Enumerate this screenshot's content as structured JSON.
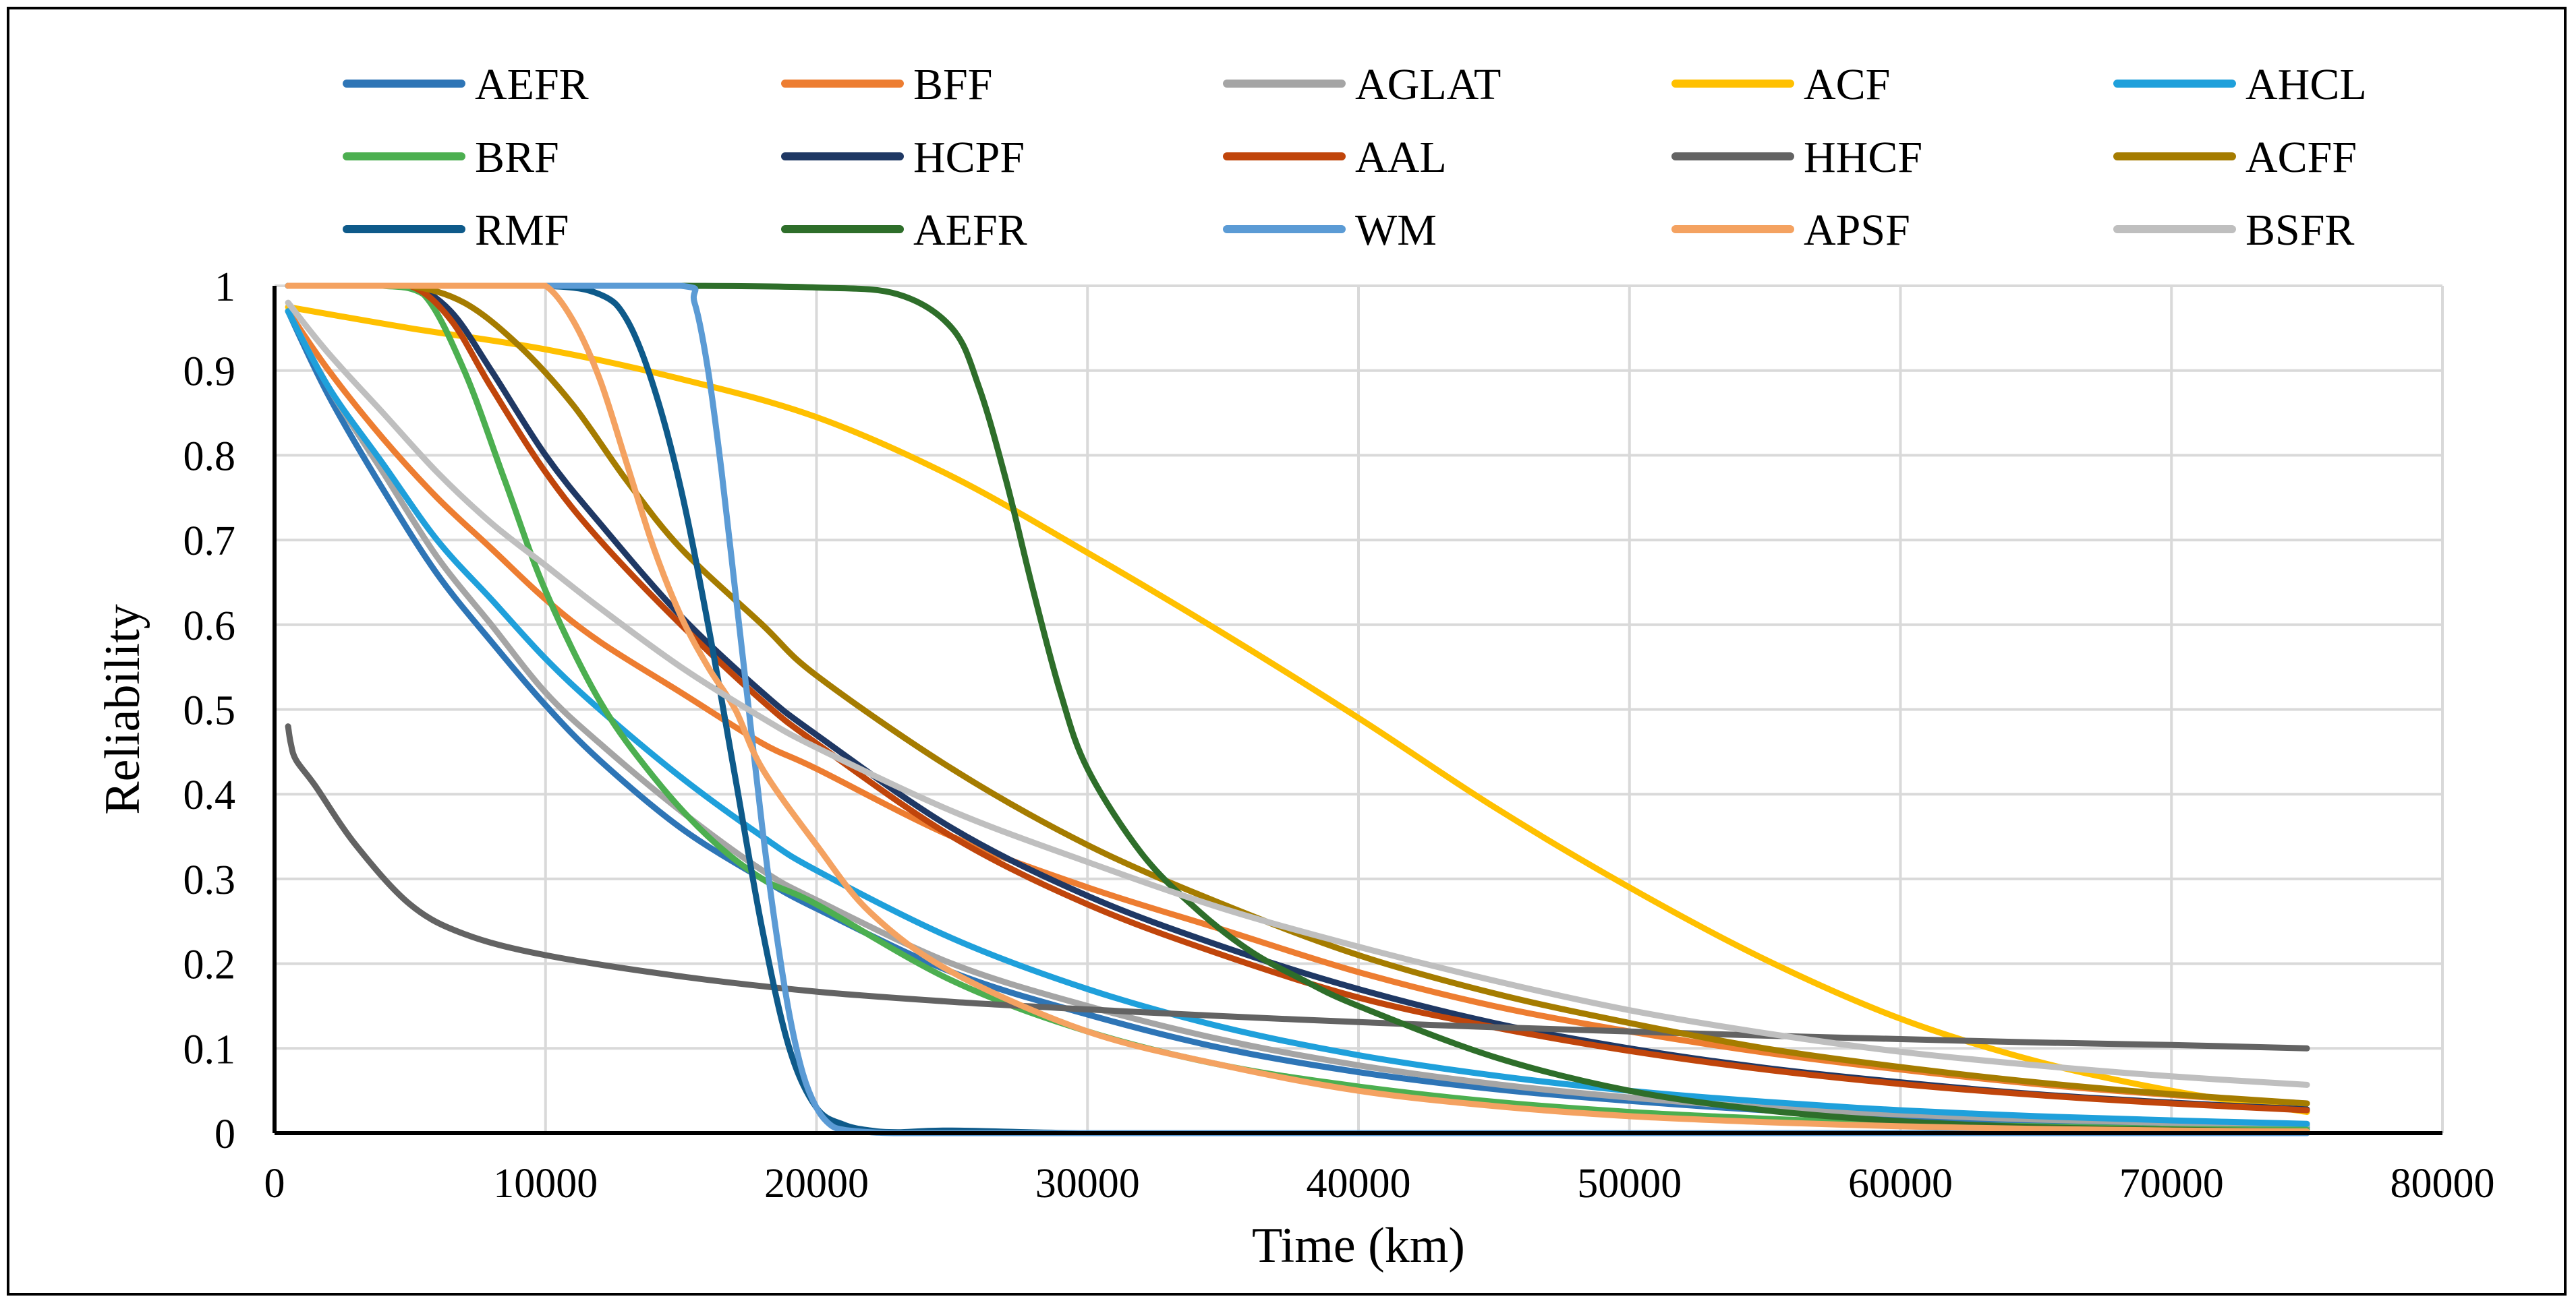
{
  "chart_data": {
    "type": "line",
    "title": "",
    "xlabel": "Time (km)",
    "ylabel": "Reliability",
    "xlim": [
      0,
      80000
    ],
    "ylim": [
      0,
      1
    ],
    "grid": true,
    "legend_position": "top",
    "x_ticks": [
      "0",
      "10000",
      "20000",
      "30000",
      "40000",
      "50000",
      "60000",
      "70000",
      "80000"
    ],
    "y_ticks": [
      "0",
      "0.1",
      "0.2",
      "0.3",
      "0.4",
      "0.5",
      "0.6",
      "0.7",
      "0.8",
      "0.9",
      "1"
    ],
    "series": [
      {
        "name": "AEFR",
        "color": "#2E75B6",
        "x": [
          500,
          2000,
          4000,
          6000,
          8000,
          10000,
          12000,
          15000,
          18000,
          20000,
          25000,
          30000,
          35000,
          40000,
          45000,
          50000,
          55000,
          60000,
          65000,
          70000,
          75000
        ],
        "values": [
          0.97,
          0.87,
          0.76,
          0.66,
          0.58,
          0.505,
          0.44,
          0.36,
          0.3,
          0.265,
          0.19,
          0.14,
          0.1,
          0.072,
          0.052,
          0.038,
          0.027,
          0.019,
          0.014,
          0.01,
          0.007
        ]
      },
      {
        "name": "BFF",
        "color": "#ED7D31",
        "x": [
          500,
          2000,
          4000,
          6000,
          8000,
          10000,
          12000,
          15000,
          18000,
          20000,
          25000,
          30000,
          35000,
          40000,
          45000,
          50000,
          55000,
          60000,
          65000,
          70000,
          75000
        ],
        "values": [
          0.97,
          0.9,
          0.82,
          0.75,
          0.69,
          0.63,
          0.58,
          0.52,
          0.46,
          0.43,
          0.35,
          0.29,
          0.24,
          0.19,
          0.15,
          0.12,
          0.095,
          0.075,
          0.058,
          0.045,
          0.035
        ]
      },
      {
        "name": "AGLAT",
        "color": "#A5A5A5",
        "x": [
          500,
          2000,
          4000,
          6000,
          8000,
          10000,
          12000,
          15000,
          18000,
          20000,
          25000,
          30000,
          35000,
          40000,
          45000,
          50000,
          55000,
          60000,
          65000,
          70000,
          75000
        ],
        "values": [
          0.97,
          0.88,
          0.78,
          0.68,
          0.6,
          0.52,
          0.46,
          0.38,
          0.31,
          0.275,
          0.2,
          0.15,
          0.11,
          0.08,
          0.058,
          0.042,
          0.03,
          0.022,
          0.016,
          0.012,
          0.009
        ]
      },
      {
        "name": "ACF",
        "color": "#FFC000",
        "x": [
          500,
          5000,
          10000,
          15000,
          20000,
          25000,
          30000,
          35000,
          40000,
          45000,
          50000,
          55000,
          60000,
          65000,
          70000,
          75000
        ],
        "values": [
          0.975,
          0.95,
          0.925,
          0.89,
          0.845,
          0.775,
          0.685,
          0.59,
          0.49,
          0.385,
          0.29,
          0.205,
          0.135,
          0.085,
          0.05,
          0.025
        ]
      },
      {
        "name": "AHCL",
        "color": "#1FA0DB",
        "x": [
          500,
          2000,
          4000,
          6000,
          8000,
          10000,
          12000,
          15000,
          18000,
          20000,
          25000,
          30000,
          35000,
          40000,
          45000,
          50000,
          55000,
          60000,
          65000,
          70000,
          75000
        ],
        "values": [
          0.97,
          0.88,
          0.79,
          0.7,
          0.63,
          0.56,
          0.5,
          0.42,
          0.35,
          0.31,
          0.23,
          0.17,
          0.125,
          0.092,
          0.068,
          0.05,
          0.037,
          0.027,
          0.02,
          0.015,
          0.011
        ]
      },
      {
        "name": "BRF",
        "color": "#4CAF50",
        "x": [
          500,
          2000,
          4000,
          5500,
          7000,
          8500,
          10000,
          12000,
          14000,
          16000,
          18000,
          20000,
          25000,
          30000,
          35000,
          40000,
          45000,
          50000,
          55000,
          60000,
          65000,
          70000,
          75000
        ],
        "values": [
          1,
          1,
          1,
          0.99,
          0.9,
          0.77,
          0.64,
          0.51,
          0.42,
          0.35,
          0.3,
          0.27,
          0.18,
          0.12,
          0.08,
          0.055,
          0.037,
          0.025,
          0.017,
          0.011,
          0.008,
          0.005,
          0.004
        ]
      },
      {
        "name": "HCPF",
        "color": "#1F3864",
        "x": [
          500,
          3000,
          5000,
          6500,
          8000,
          10000,
          12000,
          15000,
          18000,
          20000,
          25000,
          30000,
          35000,
          40000,
          45000,
          50000,
          55000,
          60000,
          65000,
          70000,
          75000
        ],
        "values": [
          1,
          1,
          1,
          0.97,
          0.9,
          0.8,
          0.72,
          0.61,
          0.52,
          0.47,
          0.36,
          0.28,
          0.22,
          0.17,
          0.13,
          0.1,
          0.077,
          0.06,
          0.046,
          0.036,
          0.028
        ]
      },
      {
        "name": "AAL",
        "color": "#C0450B",
        "x": [
          500,
          3000,
          5000,
          6500,
          8000,
          10000,
          12000,
          15000,
          18000,
          20000,
          25000,
          30000,
          35000,
          40000,
          45000,
          50000,
          55000,
          60000,
          65000,
          70000,
          75000
        ],
        "values": [
          1,
          1,
          1,
          0.96,
          0.88,
          0.78,
          0.7,
          0.6,
          0.51,
          0.46,
          0.35,
          0.27,
          0.21,
          0.16,
          0.125,
          0.097,
          0.075,
          0.058,
          0.045,
          0.035,
          0.027
        ]
      },
      {
        "name": "HHCF",
        "color": "#636363",
        "x": [
          500,
          600,
          800,
          1500,
          3000,
          5000,
          7000,
          10000,
          15000,
          20000,
          25000,
          30000,
          35000,
          40000,
          45000,
          50000,
          55000,
          60000,
          65000,
          70000,
          75000
        ],
        "values": [
          0.48,
          0.46,
          0.44,
          0.41,
          0.34,
          0.27,
          0.235,
          0.21,
          0.185,
          0.167,
          0.155,
          0.146,
          0.138,
          0.131,
          0.125,
          0.12,
          0.115,
          0.111,
          0.107,
          0.104,
          0.1
        ]
      },
      {
        "name": "ACFF",
        "color": "#A57C00",
        "x": [
          500,
          3000,
          5000,
          7000,
          9000,
          11000,
          13000,
          15000,
          18000,
          20000,
          25000,
          30000,
          35000,
          40000,
          45000,
          50000,
          55000,
          60000,
          65000,
          70000,
          75000
        ],
        "values": [
          1,
          1,
          1,
          0.98,
          0.93,
          0.86,
          0.77,
          0.69,
          0.6,
          0.54,
          0.43,
          0.34,
          0.27,
          0.21,
          0.165,
          0.13,
          0.1,
          0.078,
          0.06,
          0.046,
          0.035
        ]
      },
      {
        "name": "RMF",
        "color": "#0E5A8A",
        "x": [
          500,
          5000,
          10000,
          12000,
          13000,
          14000,
          15000,
          16000,
          17000,
          18000,
          19000,
          20000,
          21000,
          22000,
          23000,
          25000,
          30000,
          40000,
          50000,
          60000,
          75000
        ],
        "values": [
          1,
          1,
          1,
          0.99,
          0.96,
          0.88,
          0.76,
          0.6,
          0.42,
          0.24,
          0.1,
          0.03,
          0.01,
          0.003,
          0.001,
          0.003,
          0,
          0,
          0,
          0,
          0
        ]
      },
      {
        "name": "AEFR",
        "color": "#2E6E2A",
        "x": [
          500,
          5000,
          10000,
          15000,
          20000,
          23000,
          25000,
          26000,
          27000,
          28000,
          29000,
          30000,
          32000,
          34000,
          36000,
          38000,
          40000,
          45000,
          50000,
          55000,
          60000,
          65000,
          70000,
          75000
        ],
        "values": [
          1,
          1,
          1,
          1,
          0.998,
          0.99,
          0.95,
          0.88,
          0.77,
          0.64,
          0.52,
          0.43,
          0.33,
          0.265,
          0.215,
          0.18,
          0.15,
          0.09,
          0.05,
          0.027,
          0.014,
          0.007,
          0.004,
          0.002
        ]
      },
      {
        "name": "WM",
        "color": "#5B9BD5",
        "x": [
          500,
          5000,
          10000,
          15000,
          15500,
          16000,
          16500,
          17000,
          17500,
          18000,
          18500,
          19000,
          19500,
          20000,
          20500,
          21000,
          22000,
          23000,
          25000,
          30000,
          40000,
          50000,
          60000,
          75000
        ],
        "values": [
          1,
          1,
          1,
          1,
          0.98,
          0.9,
          0.78,
          0.64,
          0.5,
          0.36,
          0.24,
          0.14,
          0.07,
          0.03,
          0.01,
          0.004,
          0.001,
          0,
          0,
          0,
          0,
          0,
          0,
          0
        ]
      },
      {
        "name": "APSF",
        "color": "#F4A261",
        "x": [
          500,
          3000,
          6000,
          9000,
          10000,
          11000,
          12000,
          13000,
          14000,
          15000,
          16000,
          17000,
          18000,
          20000,
          22000,
          25000,
          30000,
          35000,
          40000,
          45000,
          50000,
          55000,
          60000,
          65000,
          70000,
          75000
        ],
        "values": [
          1,
          1,
          1,
          1,
          1,
          0.96,
          0.89,
          0.79,
          0.69,
          0.61,
          0.55,
          0.5,
          0.43,
          0.34,
          0.26,
          0.19,
          0.12,
          0.08,
          0.05,
          0.032,
          0.02,
          0.013,
          0.008,
          0.005,
          0.003,
          0.002
        ]
      },
      {
        "name": "BSFR",
        "color": "#BFBFBF",
        "x": [
          500,
          2000,
          4000,
          6000,
          8000,
          10000,
          12000,
          15000,
          18000,
          20000,
          25000,
          30000,
          35000,
          40000,
          45000,
          50000,
          55000,
          60000,
          65000,
          70000,
          75000
        ],
        "values": [
          0.98,
          0.92,
          0.85,
          0.78,
          0.72,
          0.67,
          0.62,
          0.55,
          0.49,
          0.455,
          0.38,
          0.32,
          0.265,
          0.22,
          0.18,
          0.145,
          0.118,
          0.096,
          0.08,
          0.067,
          0.057
        ]
      }
    ]
  }
}
